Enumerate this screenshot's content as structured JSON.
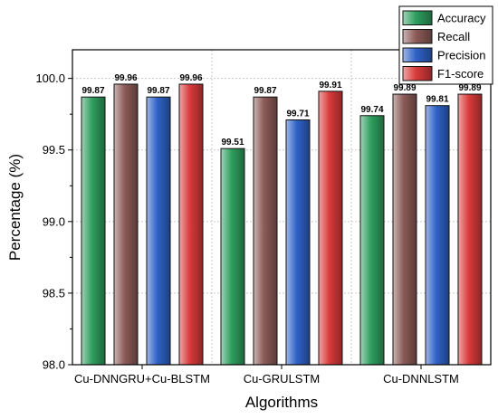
{
  "chart_data": {
    "type": "bar",
    "categories": [
      "Cu-DNNGRU+Cu-BLSTM",
      "Cu-GRULSTM",
      "Cu-DNNLSTM"
    ],
    "series": [
      {
        "name": "Accuracy",
        "values": [
          99.87,
          99.51,
          99.74
        ],
        "color": "#2e9e5e"
      },
      {
        "name": "Recall",
        "values": [
          99.96,
          99.87,
          99.89
        ],
        "color": "#8b5a57"
      },
      {
        "name": "Precision",
        "values": [
          99.87,
          99.71,
          99.81
        ],
        "color": "#2f62c8"
      },
      {
        "name": "F1-score",
        "values": [
          99.96,
          99.91,
          99.89
        ],
        "color": "#d93a3a"
      }
    ],
    "data_labels": [
      [
        "99.87",
        "99.96",
        "99.87",
        "99.96"
      ],
      [
        "99.51",
        "99.87",
        "99.71",
        "99.91"
      ],
      [
        "99.74",
        "99.89",
        "99.81",
        "99.89"
      ]
    ],
    "xlabel": "Algorithms",
    "ylabel": "Percentage (%)",
    "ylim": [
      98.0,
      100.2
    ],
    "yticks": [
      98.0,
      98.5,
      99.0,
      99.5,
      100.0
    ],
    "ytick_labels": [
      "98.0",
      "98.5",
      "99.0",
      "99.5",
      "100.0"
    ],
    "grid": true,
    "legend_position": "top-right"
  }
}
